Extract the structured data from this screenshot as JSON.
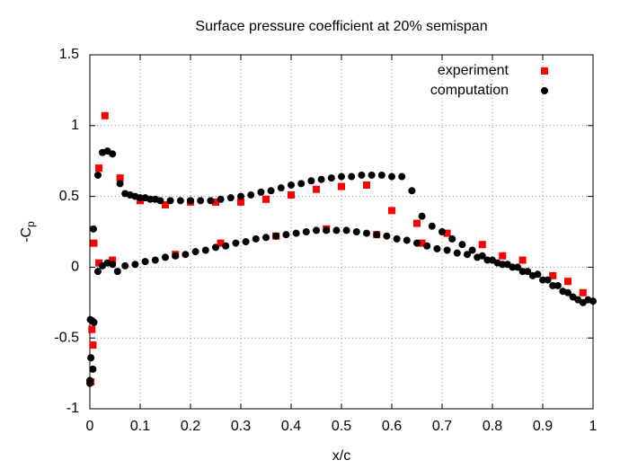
{
  "chart_data": {
    "type": "scatter",
    "title": "Surface pressure coefficient at 20% semispan",
    "xlabel": "x/c",
    "ylabel": [
      "-C",
      "p"
    ],
    "xlim": [
      0,
      1
    ],
    "ylim": [
      -1,
      1.5
    ],
    "xticks": [
      0,
      0.1,
      0.2,
      0.3,
      0.4,
      0.5,
      0.6,
      0.7,
      0.8,
      0.9,
      1
    ],
    "yticks": [
      -1,
      -0.5,
      0,
      0.5,
      1,
      1.5
    ],
    "grid": true,
    "legend": "top-right",
    "series": [
      {
        "name": "experiment",
        "color": "#ff0000",
        "marker": "square",
        "x": [
          0.002,
          0.004,
          0.006,
          0.008,
          0.018,
          0.018,
          0.03,
          0.045,
          0.06,
          0.1,
          0.15,
          0.2,
          0.25,
          0.3,
          0.35,
          0.4,
          0.45,
          0.5,
          0.55,
          0.6,
          0.65,
          0.71,
          0.78,
          0.82,
          0.86,
          0.92,
          0.95,
          0.98,
          0.17,
          0.26,
          0.37,
          0.47,
          0.57,
          0.66
        ],
        "y": [
          -0.81,
          -0.44,
          -0.55,
          0.17,
          0.03,
          0.7,
          1.07,
          0.05,
          0.63,
          0.47,
          0.44,
          0.46,
          0.46,
          0.46,
          0.48,
          0.51,
          0.55,
          0.57,
          0.58,
          0.4,
          0.31,
          0.24,
          0.16,
          0.08,
          0.05,
          -0.06,
          -0.1,
          -0.18,
          0.09,
          0.17,
          0.22,
          0.27,
          0.23,
          0.17
        ]
      },
      {
        "name": "computation",
        "color": "#000000",
        "marker": "circle",
        "x": [
          0,
          0,
          0.002,
          0.001,
          0.005,
          0.006,
          0.008,
          0.007,
          0.016,
          0.016,
          0.025,
          0.035,
          0.045,
          0.025,
          0.035,
          0.045,
          0.055,
          0.06,
          0.07,
          0.08,
          0.09,
          0.1,
          0.11,
          0.12,
          0.13,
          0.14,
          0.16,
          0.18,
          0.2,
          0.22,
          0.24,
          0.26,
          0.28,
          0.3,
          0.32,
          0.34,
          0.36,
          0.38,
          0.4,
          0.42,
          0.44,
          0.46,
          0.48,
          0.5,
          0.52,
          0.54,
          0.56,
          0.58,
          0.6,
          0.62,
          0.64,
          0.66,
          0.68,
          0.7,
          0.72,
          0.74,
          0.76,
          0.78,
          0.8,
          0.82,
          0.84,
          0.86,
          0.88,
          0.9,
          0.92,
          0.94,
          0.96,
          0.98,
          1,
          0.07,
          0.09,
          0.11,
          0.13,
          0.15,
          0.17,
          0.19,
          0.21,
          0.23,
          0.25,
          0.27,
          0.29,
          0.31,
          0.33,
          0.35,
          0.37,
          0.39,
          0.41,
          0.43,
          0.45,
          0.47,
          0.49,
          0.51,
          0.53,
          0.55,
          0.57,
          0.59,
          0.61,
          0.63,
          0.65,
          0.67,
          0.69,
          0.71,
          0.73,
          0.75,
          0.77,
          0.79,
          0.81,
          0.83,
          0.85,
          0.87,
          0.89,
          0.91,
          0.93,
          0.95,
          0.97,
          0.99
        ],
        "y": [
          -0.82,
          -0.8,
          -0.64,
          -0.37,
          -0.38,
          -0.72,
          -0.39,
          0.27,
          -0.03,
          0.65,
          0.81,
          0.82,
          0.8,
          0.01,
          0.03,
          0.02,
          -0.03,
          0.59,
          0.52,
          0.51,
          0.5,
          0.49,
          0.49,
          0.48,
          0.48,
          0.47,
          0.47,
          0.47,
          0.47,
          0.47,
          0.47,
          0.48,
          0.49,
          0.5,
          0.51,
          0.53,
          0.54,
          0.56,
          0.58,
          0.59,
          0.61,
          0.62,
          0.63,
          0.64,
          0.64,
          0.65,
          0.65,
          0.65,
          0.64,
          0.64,
          0.54,
          0.36,
          0.29,
          0.25,
          0.2,
          0.16,
          0.12,
          0.08,
          0.05,
          0.02,
          0,
          -0.03,
          -0.06,
          -0.09,
          -0.13,
          -0.17,
          -0.21,
          -0.25,
          -0.24,
          0.01,
          0.02,
          0.04,
          0.05,
          0.07,
          0.08,
          0.09,
          0.11,
          0.12,
          0.14,
          0.15,
          0.17,
          0.18,
          0.2,
          0.21,
          0.22,
          0.23,
          0.24,
          0.25,
          0.26,
          0.26,
          0.26,
          0.26,
          0.25,
          0.24,
          0.23,
          0.22,
          0.2,
          0.19,
          0.17,
          0.15,
          0.13,
          0.12,
          0.1,
          0.09,
          0.07,
          0.05,
          0.03,
          0.02,
          0,
          -0.03,
          -0.05,
          -0.09,
          -0.13,
          -0.18,
          -0.23,
          -0.23
        ]
      }
    ]
  }
}
